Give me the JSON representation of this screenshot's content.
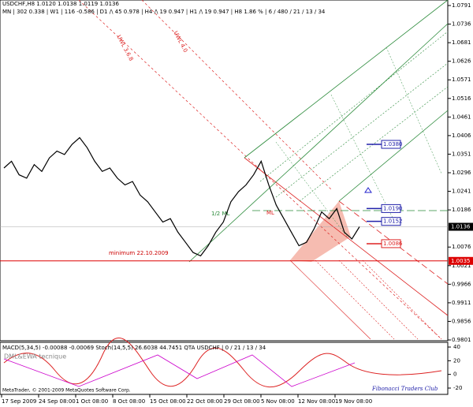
{
  "header": {
    "symbol_line": "USDCHF,H8  1.0120 1.0138 1.0119 1.0136",
    "status_line": "MN | 302  0.338 | W1 | 116  -0.586 | D1 /\\ 45  0.978 | H4 /\\ 19  0.947 | H1 /\\ 19  0.947 | H8  1.86 % | 6 / 480 / 21 / 13 / 34"
  },
  "price_axis": {
    "range": [
      0.9801,
      1.0791
    ],
    "ticks": [
      1.0791,
      1.0736,
      1.0681,
      1.0626,
      1.0571,
      1.0516,
      1.0461,
      1.0406,
      1.0351,
      1.0296,
      1.0241,
      1.0186,
      1.0076,
      1.0021,
      0.9966,
      0.9911,
      0.9856,
      0.9801
    ],
    "current": 1.0136,
    "support": {
      "value": 1.0035,
      "label": "1.0035"
    }
  },
  "price_series": {
    "closes": [
      1.031,
      1.033,
      1.029,
      1.028,
      1.032,
      1.03,
      1.034,
      1.036,
      1.035,
      1.038,
      1.04,
      1.037,
      1.033,
      1.03,
      1.031,
      1.028,
      1.026,
      1.027,
      1.023,
      1.021,
      1.018,
      1.015,
      1.016,
      1.012,
      1.009,
      1.006,
      1.005,
      1.008,
      1.012,
      1.015,
      1.021,
      1.024,
      1.026,
      1.029,
      1.033,
      1.026,
      1.02,
      1.016,
      1.012,
      1.008,
      1.009,
      1.013,
      1.018,
      1.016,
      1.019,
      1.012,
      1.01,
      1.0136
    ]
  },
  "level_boxes": [
    {
      "value": 1.038,
      "label": "1.0380"
    },
    {
      "value": 1.019,
      "label": "1.0190"
    },
    {
      "value": 1.0152,
      "label": "1.0152"
    },
    {
      "value": 1.0086,
      "label": "1.0086"
    }
  ],
  "annotations": {
    "uwl_368": "UWL 3.6.8",
    "uwl_40": "UWL 4.0",
    "half_ml": "1/2 ML",
    "ml": "ML",
    "minimum": "minimum 22.10.2009"
  },
  "indicator": {
    "caption": "MACD(5,34,5) -0.00088 -0.00069  Stoch(14,5,5) 26.6038 44.7451  QTA USDCHF | 0 / 21 / 13 / 34",
    "method": "DML&EWA tecnique",
    "ticks": [
      40,
      20,
      0,
      -20
    ]
  },
  "time_axis": [
    "17 Sep 2009",
    "24 Sep 08:00",
    "1 Oct 08:00",
    "8 Oct 08:00",
    "15 Oct 08:00",
    "22 Oct 08:00",
    "29 Oct 08:00",
    "5 Nov 08:00",
    "12 Nov 08:00",
    "19 Nov 08:00"
  ],
  "footer": {
    "copyright": "MetaTrader, © 2001-2009 MetaQuotes Software Corp.",
    "club": "Fibonacci Traders Club"
  }
}
